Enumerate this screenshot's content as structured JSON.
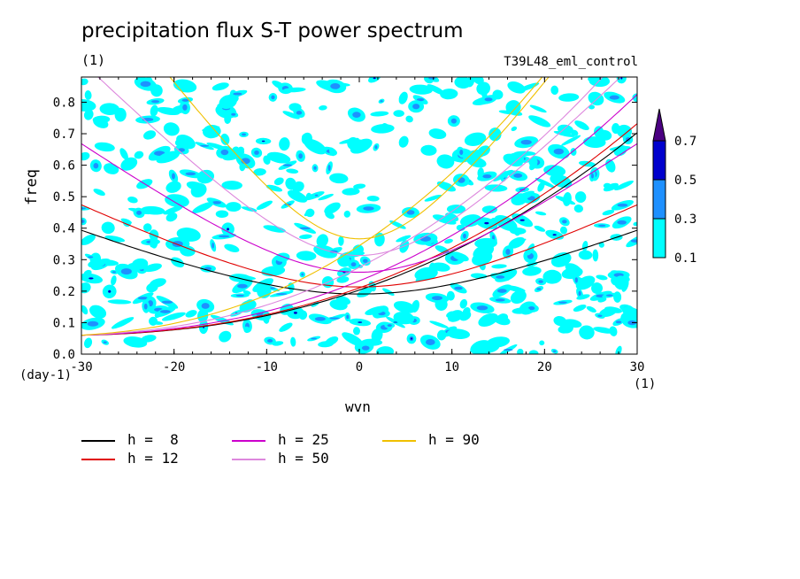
{
  "title": "precipitation flux S-T power spectrum",
  "units_label": "(1)",
  "run_label": "T39L48_eml_control",
  "chart_data": {
    "type": "heatmap",
    "xlabel": "wvn",
    "ylabel": "freq",
    "xlim": [
      -30,
      30
    ],
    "ylim": [
      0.0,
      0.88
    ],
    "x_ticks": [
      -30,
      -20,
      -10,
      0,
      10,
      20,
      30
    ],
    "y_ticks": [
      0.0,
      0.1,
      0.2,
      0.3,
      0.4,
      0.5,
      0.6,
      0.7,
      0.8
    ],
    "x_unit_label": "(day-1)",
    "x_unit_label_right": "(1)",
    "colorbar": {
      "levels": [
        0.1,
        0.3,
        0.5,
        0.7
      ],
      "colors": [
        "#00ffff",
        "#1e90ff",
        "#0000cd",
        "#4b0082"
      ]
    },
    "curves": [
      {
        "label": "h =  8",
        "h": 8,
        "color": "#000000"
      },
      {
        "label": "h = 12",
        "h": 12,
        "color": "#e00000"
      },
      {
        "label": "h = 25",
        "h": 25,
        "color": "#cc00cc"
      },
      {
        "label": "h = 50",
        "h": 50,
        "color": "#dd88dd"
      },
      {
        "label": "h = 90",
        "h": 90,
        "color": "#f0c000"
      }
    ]
  }
}
